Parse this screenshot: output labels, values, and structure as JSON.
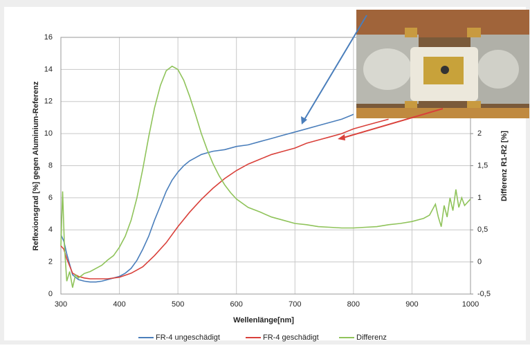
{
  "chart_data": {
    "type": "line",
    "x_label": "Wellenlänge[nm]",
    "y_label": "Reflexionsgrad [%] gegen Aluminium-Referenz",
    "y2_label": "Differenz R1-R2 [%]",
    "xlim": [
      300,
      1000
    ],
    "xticks": [
      300,
      400,
      500,
      600,
      700,
      800,
      900,
      1000
    ],
    "ylim": [
      0,
      16
    ],
    "yticks": [
      0,
      2,
      4,
      6,
      8,
      10,
      12,
      14,
      16
    ],
    "y2lim": [
      -0.5,
      3.5
    ],
    "y2ticks": [
      {
        "value": -0.5,
        "label": "-0,5"
      },
      0,
      {
        "value": 0.5,
        "label": "0,5"
      },
      1,
      {
        "value": 1.5,
        "label": "1,5"
      },
      2
    ],
    "grid": true,
    "legend": "bottom",
    "series": [
      {
        "name": "FR-4 ungeschädigt",
        "color": "#4a7ebb",
        "x": [
          300,
          305,
          310,
          320,
          330,
          340,
          350,
          360,
          370,
          380,
          390,
          400,
          410,
          420,
          430,
          440,
          450,
          460,
          470,
          480,
          490,
          500,
          510,
          520,
          530,
          540,
          550,
          560,
          580,
          600,
          620,
          640,
          660,
          680,
          700,
          720,
          740,
          760,
          780,
          800
        ],
        "values": [
          3.7,
          3.3,
          2.5,
          1.2,
          0.9,
          0.8,
          0.75,
          0.75,
          0.8,
          0.9,
          1.0,
          1.1,
          1.3,
          1.6,
          2.1,
          2.8,
          3.6,
          4.6,
          5.5,
          6.4,
          7.1,
          7.6,
          8.0,
          8.3,
          8.5,
          8.7,
          8.8,
          8.9,
          9.0,
          9.2,
          9.3,
          9.5,
          9.7,
          9.9,
          10.1,
          10.3,
          10.5,
          10.7,
          10.9,
          11.2
        ]
      },
      {
        "name": "FR-4 geschädigt",
        "color": "#d9403a",
        "x": [
          300,
          305,
          310,
          320,
          330,
          340,
          350,
          360,
          380,
          400,
          420,
          440,
          460,
          480,
          500,
          520,
          540,
          560,
          580,
          600,
          620,
          640,
          660,
          680,
          700,
          720,
          740,
          760,
          780,
          800,
          820,
          840,
          860
        ],
        "values": [
          3.0,
          2.8,
          2.2,
          1.3,
          1.1,
          1.0,
          0.95,
          0.95,
          0.95,
          1.05,
          1.3,
          1.7,
          2.4,
          3.2,
          4.2,
          5.1,
          5.9,
          6.6,
          7.2,
          7.7,
          8.1,
          8.4,
          8.7,
          8.9,
          9.1,
          9.4,
          9.6,
          9.8,
          10.0,
          10.3,
          10.5,
          10.7,
          10.9
        ]
      },
      {
        "name": "Differenz",
        "color": "#8fc35a",
        "axis": "y2",
        "x": [
          300,
          303,
          306,
          310,
          315,
          320,
          325,
          330,
          340,
          350,
          360,
          370,
          380,
          390,
          400,
          410,
          420,
          430,
          440,
          450,
          460,
          470,
          480,
          490,
          500,
          510,
          520,
          530,
          540,
          550,
          560,
          570,
          580,
          590,
          600,
          620,
          640,
          660,
          680,
          700,
          720,
          740,
          760,
          780,
          800,
          820,
          840,
          860,
          880,
          900,
          920,
          930,
          940,
          945,
          950,
          955,
          960,
          965,
          970,
          975,
          980,
          985,
          990,
          1000
        ],
        "values": [
          0.25,
          1.1,
          0.25,
          -0.3,
          -0.15,
          -0.4,
          -0.2,
          -0.25,
          -0.18,
          -0.15,
          -0.1,
          -0.05,
          0.03,
          0.1,
          0.23,
          0.4,
          0.65,
          1.0,
          1.45,
          1.95,
          2.4,
          2.75,
          2.98,
          3.05,
          3.0,
          2.83,
          2.58,
          2.3,
          2.0,
          1.75,
          1.53,
          1.35,
          1.2,
          1.08,
          0.98,
          0.85,
          0.78,
          0.7,
          0.65,
          0.6,
          0.58,
          0.55,
          0.54,
          0.53,
          0.53,
          0.54,
          0.55,
          0.58,
          0.6,
          0.63,
          0.68,
          0.73,
          0.9,
          0.7,
          0.55,
          0.88,
          0.7,
          1.0,
          0.8,
          1.13,
          0.85,
          1.0,
          0.88,
          0.98
        ]
      }
    ]
  }
}
